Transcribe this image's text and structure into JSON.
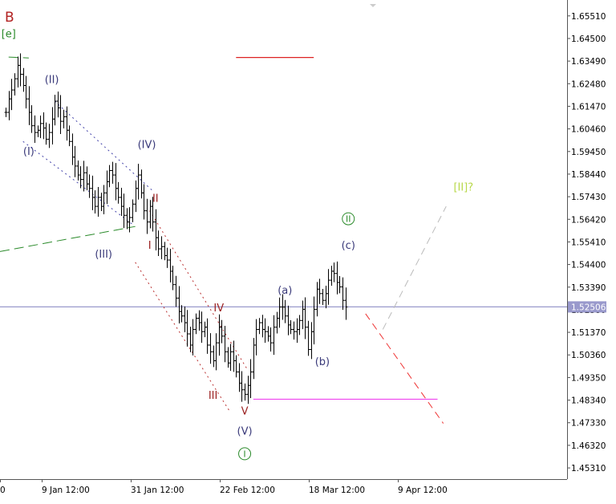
{
  "chart_data": {
    "type": "line",
    "symbol": "B",
    "price_axis": {
      "ticks": [
        "1.65510",
        "1.64500",
        "1.63490",
        "1.62480",
        "1.61470",
        "1.60460",
        "1.59450",
        "1.58440",
        "1.57430",
        "1.56420",
        "1.55410",
        "1.54400",
        "1.53390",
        "1.52380",
        "1.51370",
        "1.50360",
        "1.49350",
        "1.48340",
        "1.47330",
        "1.46320",
        "1.45310"
      ],
      "range": [
        1.4481,
        1.6622
      ],
      "current_price": "1.52506",
      "current_value": 1.52506
    },
    "time_axis": {
      "labels": [
        "0",
        "9 Jan 12:00",
        "31 Jan 12:00",
        "22 Feb 12:00",
        "18 Mar 12:00",
        "9 Apr 12:00"
      ]
    },
    "price_series": [
      [
        0,
        1.612
      ],
      [
        1,
        1.618
      ],
      [
        2,
        1.622
      ],
      [
        3,
        1.627
      ],
      [
        4,
        1.633
      ],
      [
        5,
        1.629
      ],
      [
        6,
        1.624
      ],
      [
        7,
        1.618
      ],
      [
        8,
        1.612
      ],
      [
        9,
        1.606
      ],
      [
        10,
        1.603
      ],
      [
        11,
        1.604
      ],
      [
        12,
        1.607
      ],
      [
        13,
        1.605
      ],
      [
        14,
        1.6
      ],
      [
        15,
        1.603
      ],
      [
        16,
        1.609
      ],
      [
        17,
        1.617
      ],
      [
        18,
        1.614
      ],
      [
        19,
        1.608
      ],
      [
        20,
        1.61
      ],
      [
        21,
        1.604
      ],
      [
        22,
        1.599
      ],
      [
        23,
        1.592
      ],
      [
        24,
        1.588
      ],
      [
        25,
        1.584
      ],
      [
        26,
        1.582
      ],
      [
        27,
        1.585
      ],
      [
        28,
        1.58
      ],
      [
        29,
        1.578
      ],
      [
        30,
        1.574
      ],
      [
        31,
        1.57
      ],
      [
        32,
        1.574
      ],
      [
        33,
        1.57
      ],
      [
        34,
        1.576
      ],
      [
        35,
        1.581
      ],
      [
        36,
        1.586
      ],
      [
        37,
        1.584
      ],
      [
        38,
        1.578
      ],
      [
        39,
        1.574
      ],
      [
        40,
        1.57
      ],
      [
        41,
        1.566
      ],
      [
        42,
        1.563
      ],
      [
        43,
        1.565
      ],
      [
        44,
        1.571
      ],
      [
        45,
        1.578
      ],
      [
        46,
        1.584
      ],
      [
        47,
        1.576
      ],
      [
        48,
        1.568
      ],
      [
        49,
        1.563
      ],
      [
        50,
        1.57
      ],
      [
        51,
        1.563
      ],
      [
        52,
        1.556
      ],
      [
        53,
        1.551
      ],
      [
        54,
        1.552
      ],
      [
        55,
        1.548
      ],
      [
        56,
        1.546
      ],
      [
        57,
        1.541
      ],
      [
        58,
        1.535
      ],
      [
        59,
        1.529
      ],
      [
        60,
        1.523
      ],
      [
        61,
        1.521
      ],
      [
        62,
        1.518
      ],
      [
        63,
        1.513
      ],
      [
        64,
        1.508
      ],
      [
        65,
        1.515
      ],
      [
        66,
        1.52
      ],
      [
        67,
        1.518
      ],
      [
        68,
        1.514
      ],
      [
        69,
        1.516
      ],
      [
        70,
        1.508
      ],
      [
        71,
        1.505
      ],
      [
        72,
        1.501
      ],
      [
        73,
        1.509
      ],
      [
        74,
        1.516
      ],
      [
        75,
        1.512
      ],
      [
        76,
        1.505
      ],
      [
        77,
        1.5
      ],
      [
        78,
        1.505
      ],
      [
        79,
        1.501
      ],
      [
        80,
        1.496
      ],
      [
        81,
        1.491
      ],
      [
        82,
        1.488
      ],
      [
        83,
        1.486
      ],
      [
        84,
        1.49
      ],
      [
        85,
        1.496
      ],
      [
        86,
        1.508
      ],
      [
        87,
        1.515
      ],
      [
        88,
        1.518
      ],
      [
        89,
        1.515
      ],
      [
        90,
        1.514
      ],
      [
        91,
        1.512
      ],
      [
        92,
        1.509
      ],
      [
        93,
        1.516
      ],
      [
        94,
        1.52
      ],
      [
        95,
        1.525
      ],
      [
        96,
        1.525
      ],
      [
        97,
        1.521
      ],
      [
        98,
        1.517
      ],
      [
        99,
        1.515
      ],
      [
        100,
        1.514
      ],
      [
        101,
        1.515
      ],
      [
        102,
        1.519
      ],
      [
        103,
        1.524
      ],
      [
        104,
        1.516
      ],
      [
        105,
        1.506
      ],
      [
        106,
        1.514
      ],
      [
        107,
        1.524
      ],
      [
        108,
        1.533
      ],
      [
        109,
        1.531
      ],
      [
        110,
        1.528
      ],
      [
        111,
        1.531
      ],
      [
        112,
        1.537
      ],
      [
        113,
        1.541
      ],
      [
        114,
        1.54
      ],
      [
        115,
        1.536
      ],
      [
        116,
        1.534
      ],
      [
        117,
        1.528
      ],
      [
        118,
        1.525
      ]
    ],
    "x_range": [
      -2,
      195
    ],
    "horizontal_levels": [
      {
        "price": 1.6365,
        "from": 80,
        "to": 107,
        "color": "#dd2222"
      },
      {
        "price": 1.4838,
        "from": 86,
        "to": 150,
        "color": "#ee44ee"
      },
      {
        "price": 1.52506,
        "from": -2,
        "to": 195,
        "color": "#9999cc"
      }
    ],
    "trend_lines": [
      {
        "from": [
          1,
          1.6367
        ],
        "to": [
          8,
          1.6363
        ],
        "color": "#2a8a2a",
        "style": "long-dash"
      },
      {
        "from": [
          -2,
          1.5498
        ],
        "to": [
          45,
          1.561
        ],
        "color": "#2a8a2a",
        "style": "long-dash"
      },
      {
        "from": [
          17,
          1.617
        ],
        "to": [
          51,
          1.577
        ],
        "color": "#4444aa",
        "style": "dot"
      },
      {
        "from": [
          6,
          1.599
        ],
        "to": [
          44,
          1.562
        ],
        "color": "#4444aa",
        "style": "dot"
      },
      {
        "from": [
          50,
          1.568
        ],
        "to": [
          84,
          1.497
        ],
        "color": "#bb3333",
        "style": "dot"
      },
      {
        "from": [
          45,
          1.545
        ],
        "to": [
          78,
          1.478
        ],
        "color": "#bb3333",
        "style": "dot"
      },
      {
        "from": [
          125,
          1.522
        ],
        "to": [
          152,
          1.473
        ],
        "color": "#ee3333",
        "style": "dash"
      },
      {
        "from": [
          131,
          1.515
        ],
        "to": [
          153,
          1.57
        ],
        "color": "#bbbbbb",
        "style": "dash"
      }
    ],
    "annotations": [
      {
        "label": "[e]",
        "x": 1,
        "price": 1.6456,
        "color": "#2a8a2a",
        "shape": "none"
      },
      {
        "label": "(II)",
        "x": 16,
        "price": 1.625,
        "color": "#3a3a7a",
        "shape": "none"
      },
      {
        "label": "(I)",
        "x": 8,
        "price": 1.593,
        "color": "#3a3a7a",
        "shape": "none"
      },
      {
        "label": "(IV)",
        "x": 49,
        "price": 1.596,
        "color": "#3a3a7a",
        "shape": "none"
      },
      {
        "label": "(III)",
        "x": 34,
        "price": 1.547,
        "color": "#3a3a7a",
        "shape": "none"
      },
      {
        "label": "II",
        "x": 52,
        "price": 1.572,
        "color": "#9b2222",
        "shape": "none"
      },
      {
        "label": "I",
        "x": 50,
        "price": 1.551,
        "color": "#9b2222",
        "shape": "none"
      },
      {
        "label": "IV",
        "x": 74,
        "price": 1.523,
        "color": "#9b2222",
        "shape": "none"
      },
      {
        "label": "III",
        "x": 72,
        "price": 1.484,
        "color": "#9b2222",
        "shape": "none"
      },
      {
        "label": "V",
        "x": 83,
        "price": 1.477,
        "color": "#9b2222",
        "shape": "none"
      },
      {
        "label": "(V)",
        "x": 83,
        "price": 1.468,
        "color": "#3a3a7a",
        "shape": "none"
      },
      {
        "label": "I",
        "x": 83,
        "price": 1.458,
        "color": "#2a8a2a",
        "shape": "circle"
      },
      {
        "label": "(a)",
        "x": 97,
        "price": 1.531,
        "color": "#3a3a7a",
        "shape": "none"
      },
      {
        "label": "(b)",
        "x": 110,
        "price": 1.499,
        "color": "#3a3a7a",
        "shape": "none"
      },
      {
        "label": "II",
        "x": 119,
        "price": 1.563,
        "color": "#2a8a2a",
        "shape": "circle"
      },
      {
        "label": "(c)",
        "x": 119,
        "price": 1.551,
        "color": "#3a3a7a",
        "shape": "none"
      },
      {
        "label": "[II]?",
        "x": 159,
        "price": 1.577,
        "color": "#b8d84a",
        "shape": "none"
      }
    ],
    "colors": {
      "bars": "#000000",
      "grid_axis": "#555555",
      "symbol": "#b22222"
    },
    "grid": false,
    "legend": "none"
  }
}
